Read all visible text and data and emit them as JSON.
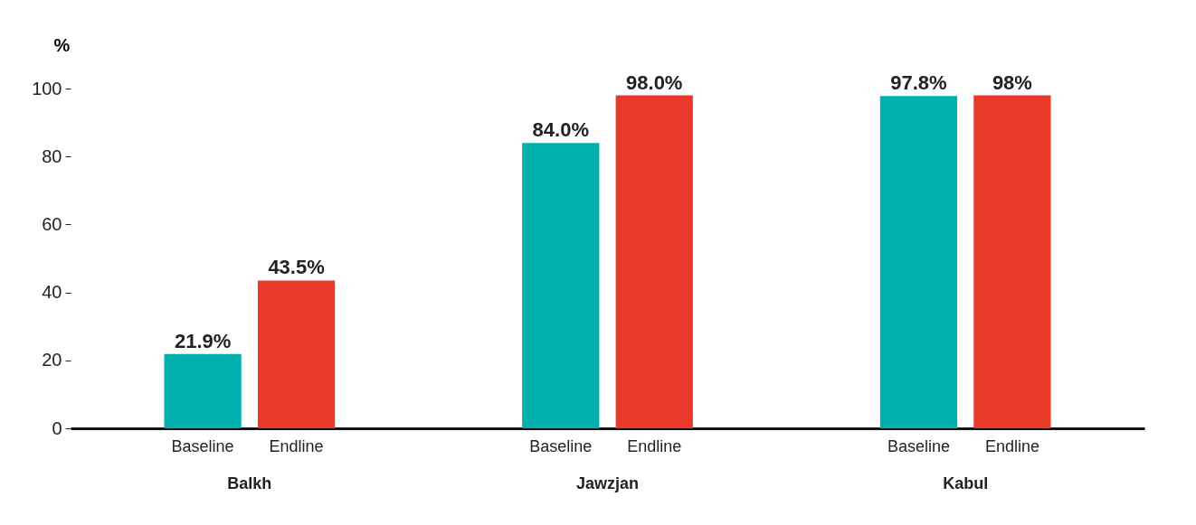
{
  "chart_data": {
    "type": "bar",
    "ylabel": "%",
    "categories": [
      "Balkh",
      "Jawzjan",
      "Kabul"
    ],
    "series": [
      {
        "name": "Baseline",
        "color": "#00b0ad",
        "values": [
          21.9,
          84.0,
          97.8
        ],
        "value_labels": [
          "21.9%",
          "84.0%",
          "97.8%"
        ]
      },
      {
        "name": "Endline",
        "color": "#e8392b",
        "values": [
          43.5,
          98.0,
          98
        ],
        "value_labels": [
          "43.5%",
          "98.0%",
          "98%"
        ]
      }
    ],
    "ylim": [
      0,
      100
    ],
    "yticks": [
      0,
      20,
      40,
      60,
      80,
      100
    ],
    "grid": false,
    "legend": false
  }
}
